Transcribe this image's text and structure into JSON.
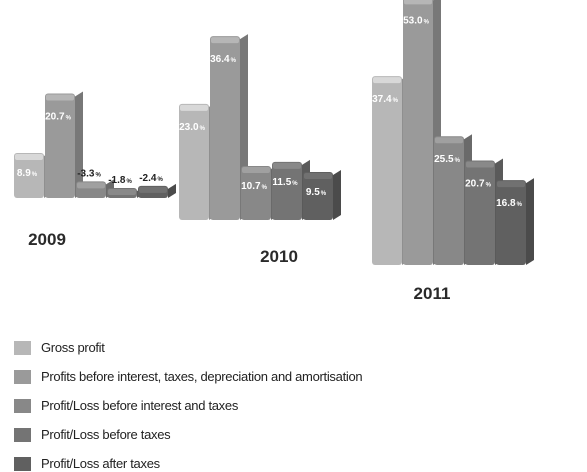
{
  "colors": [
    "#b7b7b7",
    "#9a9a9a",
    "#888888",
    "#747474",
    "#606060"
  ],
  "chart_data": {
    "type": "bar",
    "title": "",
    "xlabel": "",
    "ylabel": "",
    "ylim": [
      -5,
      55
    ],
    "categories": [
      "2009",
      "2010",
      "2011"
    ],
    "series": [
      {
        "name": "Gross profit",
        "values": [
          8.9,
          23.0,
          37.4
        ],
        "labels": [
          "8.9",
          "23.0",
          "37.4"
        ]
      },
      {
        "name": "Profits before interest, taxes, depreciation and amortisation",
        "values": [
          20.7,
          36.4,
          53.0
        ],
        "labels": [
          "20.7",
          "36.4",
          "53.0"
        ]
      },
      {
        "name": "Profit/Loss before interest and taxes",
        "values": [
          -3.3,
          10.7,
          25.5
        ],
        "labels": [
          "-3.3",
          "10.7",
          "25.5"
        ]
      },
      {
        "name": "Profit/Loss before taxes",
        "values": [
          -1.8,
          11.5,
          20.7
        ],
        "labels": [
          "-1.8",
          "11.5",
          "20.7"
        ]
      },
      {
        "name": "Profit/Loss after taxes",
        "values": [
          -2.4,
          9.5,
          16.8
        ],
        "labels": [
          "-2.4",
          "9.5",
          "16.8"
        ]
      }
    ],
    "value_suffix": "%",
    "legend_position": "bottom"
  }
}
